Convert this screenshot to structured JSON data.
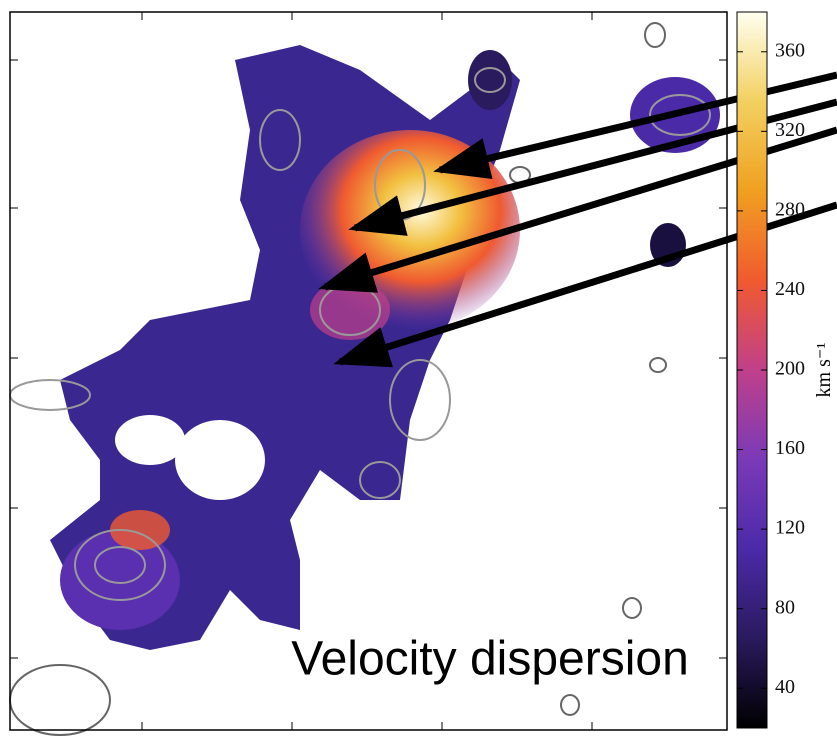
{
  "chart_data": {
    "type": "colormap",
    "annotation": "Velocity dispersion",
    "colorbar": {
      "label": "km s⁻¹",
      "ylim": [
        20,
        380
      ],
      "yticks": [
        40,
        80,
        120,
        160,
        200,
        240,
        280,
        320,
        360
      ],
      "colors": [
        "#000000",
        "#2a1a5e",
        "#4b2aa8",
        "#7a3ab8",
        "#c0408a",
        "#f05a30",
        "#f0a020",
        "#f2d060",
        "#fffff0"
      ]
    }
  }
}
